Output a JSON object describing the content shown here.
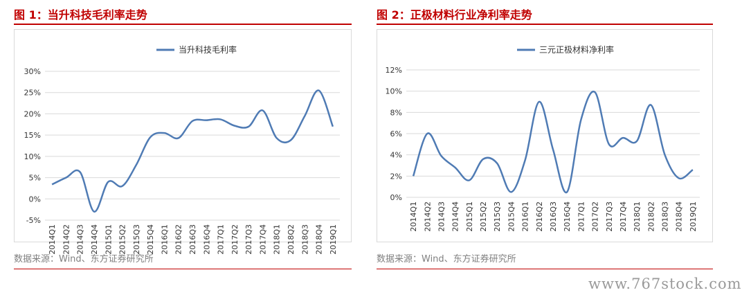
{
  "watermark": "www.767stock.com",
  "panels": [
    {
      "title": "图 1：当升科技毛利率走势",
      "source": "数据来源：Wind、东方证券研究所",
      "chart_data": {
        "type": "line",
        "title": "",
        "legend": "top-center",
        "grid": true,
        "series": [
          {
            "name": "当升科技毛利率",
            "color": "#4f7bb4",
            "values": [
              3.4,
              5.0,
              6.3,
              -3.0,
              4.0,
              3.0,
              8.0,
              14.5,
              15.5,
              14.3,
              18.3,
              18.5,
              18.7,
              17.2,
              17.0,
              20.8,
              14.3,
              13.8,
              19.5,
              25.5,
              17.0
            ]
          }
        ],
        "categories": [
          "2014Q1",
          "2014Q2",
          "2014Q3",
          "2014Q4",
          "2015Q1",
          "2015Q2",
          "2015Q3",
          "2015Q4",
          "2016Q1",
          "2016Q2",
          "2016Q3",
          "2016Q4",
          "2017Q1",
          "2017Q2",
          "2017Q3",
          "2017Q4",
          "2018Q1",
          "2018Q2",
          "2018Q3",
          "2018Q4",
          "2019Q1"
        ],
        "yticks": [
          "-5%",
          "0%",
          "5%",
          "10%",
          "15%",
          "20%",
          "25%",
          "30%"
        ],
        "ylim": [
          -5,
          30
        ],
        "ystep": 5
      }
    },
    {
      "title": "图 2：正极材料行业净利率走势",
      "source": "数据来源：Wind、东方证券研究所",
      "chart_data": {
        "type": "line",
        "title": "",
        "legend": "top-center",
        "grid": true,
        "series": [
          {
            "name": "三元正极材料净利率",
            "color": "#4f7bb4",
            "values": [
              2.0,
              6.0,
              3.9,
              2.8,
              1.6,
              3.6,
              3.2,
              0.5,
              3.5,
              9.0,
              4.5,
              0.5,
              7.3,
              9.9,
              5.0,
              5.6,
              5.3,
              8.7,
              4.0,
              1.8,
              2.6
            ]
          }
        ],
        "categories": [
          "2014Q1",
          "2014Q2",
          "2014Q3",
          "2014Q4",
          "2015Q1",
          "2015Q2",
          "2015Q3",
          "2015Q4",
          "2016Q1",
          "2016Q2",
          "2016Q3",
          "2016Q4",
          "2017Q1",
          "2017Q2",
          "2017Q3",
          "2017Q4",
          "2018Q1",
          "2018Q2",
          "2018Q3",
          "2018Q4",
          "2019Q1"
        ],
        "yticks": [
          "0%",
          "2%",
          "4%",
          "6%",
          "8%",
          "10%",
          "12%"
        ],
        "ylim": [
          0,
          12
        ],
        "ystep": 2
      }
    }
  ]
}
